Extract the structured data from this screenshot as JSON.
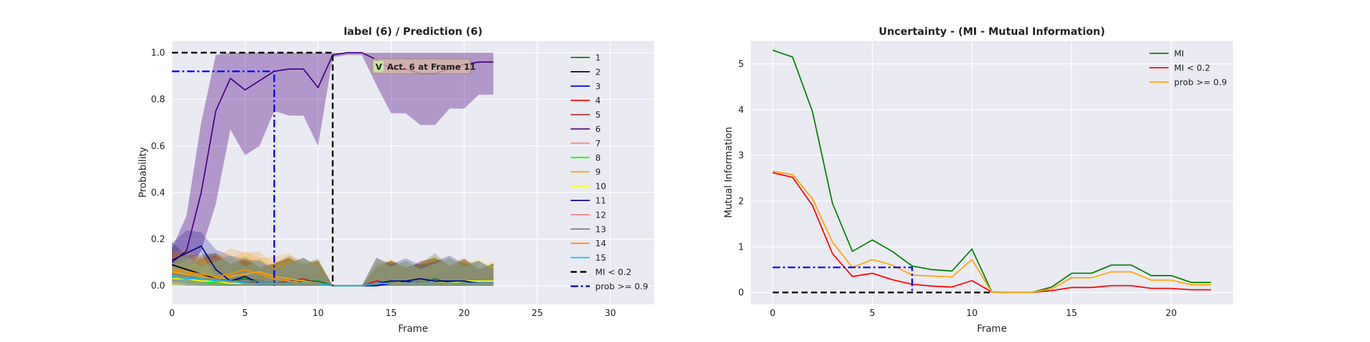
{
  "chart_data": [
    {
      "type": "line",
      "title": "label (6) / Prediction (6)",
      "xlabel": "Frame",
      "ylabel": "Probability",
      "xlim": [
        0,
        33
      ],
      "ylim": [
        -0.08,
        1.05
      ],
      "xticks": [
        0,
        5,
        10,
        15,
        20,
        25,
        30
      ],
      "yticks": [
        0.0,
        0.2,
        0.4,
        0.6,
        0.8,
        1.0
      ],
      "grid": true,
      "legend_position": "right",
      "x": [
        0,
        1,
        2,
        3,
        4,
        5,
        6,
        7,
        8,
        9,
        10,
        11,
        12,
        13,
        14,
        15,
        16,
        17,
        18,
        19,
        20,
        21,
        22
      ],
      "series": [
        {
          "name": "1",
          "color": "#008000",
          "values": [
            0.06,
            0.05,
            0.04,
            0.03,
            0.02,
            0.03,
            0.02,
            0.01,
            0.01,
            0.02,
            0.02,
            0,
            0,
            0,
            0,
            0.01,
            0.02,
            0.01,
            0.03,
            0.01,
            0.01,
            0.01,
            0.01
          ]
        },
        {
          "name": "2",
          "color": "#000000",
          "values": [
            0.09,
            0.07,
            0.05,
            0.03,
            0.02,
            0.02,
            0.02,
            0.01,
            0.01,
            0.01,
            0.01,
            0,
            0,
            0,
            0,
            0.01,
            0.01,
            0.02,
            0.01,
            0.01,
            0.02,
            0.01,
            0.01
          ]
        },
        {
          "name": "3",
          "color": "#0000ff",
          "values": [
            0.05,
            0.04,
            0.03,
            0.02,
            0.02,
            0.01,
            0.01,
            0.01,
            0.01,
            0.01,
            0.01,
            0,
            0,
            0,
            0,
            0.01,
            0.02,
            0.01,
            0.01,
            0.01,
            0.01,
            0.01,
            0.01
          ]
        },
        {
          "name": "4",
          "color": "#ff0000",
          "values": [
            0.03,
            0.03,
            0.02,
            0.02,
            0.01,
            0.01,
            0.01,
            0.01,
            0.01,
            0.01,
            0.01,
            0,
            0,
            0,
            0.02,
            0.01,
            0.01,
            0.02,
            0.01,
            0.01,
            0.01,
            0.01,
            0.01
          ]
        },
        {
          "name": "5",
          "color": "#a52a2a",
          "values": [
            0.04,
            0.03,
            0.03,
            0.02,
            0.02,
            0.01,
            0.02,
            0.01,
            0.02,
            0.03,
            0.01,
            0,
            0,
            0,
            0.01,
            0.01,
            0.01,
            0.01,
            0.01,
            0.02,
            0.02,
            0.01,
            0.01
          ]
        },
        {
          "name": "6",
          "color": "#4b0082",
          "values": [
            0.1,
            0.15,
            0.4,
            0.75,
            0.89,
            0.84,
            0.88,
            0.92,
            0.93,
            0.93,
            0.85,
            0.99,
            1.0,
            1.0,
            0.97,
            0.93,
            0.93,
            0.91,
            0.91,
            0.93,
            0.95,
            0.96,
            0.96
          ],
          "band_lower": [
            0.02,
            0.05,
            0.15,
            0.35,
            0.67,
            0.56,
            0.6,
            0.75,
            0.73,
            0.73,
            0.6,
            0.98,
            0.99,
            0.99,
            0.86,
            0.74,
            0.74,
            0.69,
            0.69,
            0.76,
            0.76,
            0.82,
            0.82
          ],
          "band_upper": [
            0.16,
            0.3,
            0.7,
            0.99,
            1.0,
            1.0,
            1.0,
            1.0,
            1.0,
            1.0,
            1.0,
            1.0,
            1.0,
            1.0,
            1.0,
            1.0,
            1.0,
            1.0,
            1.0,
            1.0,
            1.0,
            1.0,
            1.0
          ]
        },
        {
          "name": "7",
          "color": "#fa8072",
          "values": [
            0.05,
            0.04,
            0.03,
            0.02,
            0.01,
            0.01,
            0.01,
            0.01,
            0.01,
            0.01,
            0.01,
            0,
            0,
            0,
            0.01,
            0.01,
            0.01,
            0.01,
            0.01,
            0.01,
            0.01,
            0.01,
            0.01
          ]
        },
        {
          "name": "8",
          "color": "#00ff00",
          "values": [
            0.03,
            0.03,
            0.02,
            0.01,
            0.01,
            0.01,
            0.01,
            0.01,
            0.01,
            0.01,
            0.01,
            0,
            0,
            0,
            0.01,
            0.01,
            0.01,
            0.01,
            0.01,
            0.01,
            0.01,
            0.01,
            0.01
          ]
        },
        {
          "name": "9",
          "color": "#ffa500",
          "values": [
            0.06,
            0.05,
            0.04,
            0.03,
            0.04,
            0.05,
            0.06,
            0.04,
            0.03,
            0.02,
            0.01,
            0,
            0,
            0,
            0.01,
            0.02,
            0.01,
            0.01,
            0.02,
            0.01,
            0.02,
            0.02,
            0.02
          ]
        },
        {
          "name": "10",
          "color": "#ffff00",
          "values": [
            0.03,
            0.03,
            0.02,
            0.02,
            0.01,
            0.01,
            0.01,
            0.01,
            0.01,
            0.01,
            0.01,
            0,
            0,
            0,
            0.01,
            0.01,
            0.01,
            0.01,
            0.01,
            0.01,
            0.02,
            0.02,
            0.02
          ]
        },
        {
          "name": "11",
          "color": "#00008b",
          "values": [
            0.11,
            0.14,
            0.17,
            0.07,
            0.02,
            0.04,
            0.01,
            0.01,
            0.01,
            0.01,
            0.01,
            0,
            0,
            0,
            0.01,
            0.02,
            0.02,
            0.03,
            0.02,
            0.02,
            0.02,
            0.01,
            0.01
          ]
        },
        {
          "name": "12",
          "color": "#f08080",
          "values": [
            0.04,
            0.03,
            0.03,
            0.02,
            0.02,
            0.01,
            0.01,
            0.01,
            0.01,
            0.01,
            0.01,
            0,
            0,
            0,
            0.01,
            0.01,
            0.01,
            0.01,
            0.01,
            0.01,
            0.01,
            0.01,
            0.01
          ]
        },
        {
          "name": "13",
          "color": "#808080",
          "values": [
            0.05,
            0.04,
            0.03,
            0.03,
            0.02,
            0.02,
            0.02,
            0.01,
            0.01,
            0.01,
            0.01,
            0,
            0,
            0,
            0.01,
            0.01,
            0.01,
            0.02,
            0.01,
            0.01,
            0.01,
            0.01,
            0.01
          ]
        },
        {
          "name": "14",
          "color": "#ff8c00",
          "values": [
            0.07,
            0.06,
            0.05,
            0.04,
            0.05,
            0.07,
            0.05,
            0.03,
            0.02,
            0.01,
            0.01,
            0,
            0,
            0,
            0.01,
            0.01,
            0.01,
            0.01,
            0.01,
            0.01,
            0.01,
            0.01,
            0.01
          ]
        },
        {
          "name": "15",
          "color": "#00bfff",
          "values": [
            0.04,
            0.03,
            0.03,
            0.02,
            0.02,
            0.01,
            0.01,
            0.01,
            0.01,
            0.01,
            0.01,
            0,
            0,
            0,
            0.01,
            0.01,
            0.01,
            0.01,
            0.01,
            0.01,
            0.01,
            0.01,
            0.01
          ]
        },
        {
          "name": "MI < 0.2",
          "color": "#000000",
          "dash": "dashed",
          "points": [
            [
              0,
              1.0
            ],
            [
              11,
              1.0
            ],
            [
              11,
              0
            ]
          ]
        },
        {
          "name": "prob >= 0.9",
          "color": "#0000ff",
          "dash": "dashdot",
          "points": [
            [
              0,
              0.92
            ],
            [
              7,
              0.92
            ],
            [
              7,
              0
            ]
          ]
        }
      ],
      "annotation": {
        "text": "Act. 6 at Frame 11",
        "mark": "V",
        "x": 14,
        "y": 0.94
      }
    },
    {
      "type": "line",
      "title": "Uncertainty - (MI - Mutual Information)",
      "xlabel": "Frame",
      "ylabel": "Mutual Information",
      "xlim": [
        -1.1,
        23.1
      ],
      "ylim": [
        -0.26,
        5.5
      ],
      "xticks": [
        0,
        5,
        10,
        15,
        20
      ],
      "yticks": [
        0,
        1,
        2,
        3,
        4,
        5
      ],
      "grid": true,
      "legend_position": "top-right",
      "x": [
        0,
        1,
        2,
        3,
        4,
        5,
        6,
        7,
        8,
        9,
        10,
        11,
        12,
        13,
        14,
        15,
        16,
        17,
        18,
        19,
        20,
        21,
        22
      ],
      "series": [
        {
          "name": "MI",
          "color": "#008000",
          "values": [
            5.3,
            5.15,
            3.95,
            1.95,
            0.9,
            1.15,
            0.9,
            0.58,
            0.5,
            0.47,
            0.95,
            0.01,
            0.0,
            0.0,
            0.12,
            0.42,
            0.42,
            0.6,
            0.6,
            0.37,
            0.37,
            0.22,
            0.22
          ]
        },
        {
          "name": "MI < 0.2",
          "color": "#ff0000",
          "values": [
            2.62,
            2.52,
            1.9,
            0.85,
            0.35,
            0.42,
            0.28,
            0.18,
            0.14,
            0.12,
            0.26,
            0.01,
            0.0,
            0.0,
            0.04,
            0.11,
            0.11,
            0.15,
            0.15,
            0.09,
            0.09,
            0.06,
            0.06
          ]
        },
        {
          "name": "prob >= 0.9",
          "color": "#ffa500",
          "values": [
            2.65,
            2.58,
            2.05,
            1.1,
            0.55,
            0.72,
            0.6,
            0.38,
            0.36,
            0.34,
            0.72,
            0.01,
            0.0,
            0.0,
            0.08,
            0.32,
            0.32,
            0.45,
            0.45,
            0.27,
            0.27,
            0.17,
            0.17
          ]
        }
      ],
      "reference_lines": [
        {
          "color": "#000000",
          "dash": "dashed",
          "points": [
            [
              0,
              0.0
            ],
            [
              11,
              0.0
            ],
            [
              11,
              0
            ]
          ]
        },
        {
          "color": "#0000ff",
          "dash": "dashdot",
          "points": [
            [
              0,
              0.55
            ],
            [
              7,
              0.55
            ],
            [
              7,
              0
            ]
          ]
        }
      ]
    }
  ]
}
